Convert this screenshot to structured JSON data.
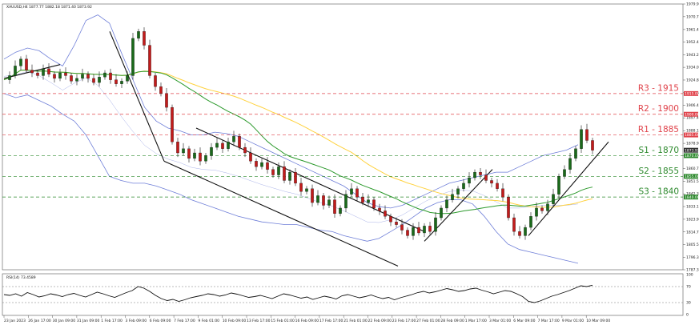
{
  "header": {
    "symbol_info": "XAUUSD,H4  1877.77 1882.18 1871.40 1873.92"
  },
  "indicator": {
    "label": "RSI(14) 73.4589"
  },
  "colors": {
    "resistance": "#e0434b",
    "support": "#2e8a2e",
    "ma_green": "#2d9a2d",
    "ma_yellow": "#ffd23f",
    "bands": "#6f7fd8",
    "candle": "#111111",
    "bull": "#1a6a1a",
    "bear": "#c21b1b"
  },
  "levels": [
    {
      "name": "R3",
      "value": 1915,
      "label": "R3 - 1915",
      "type": "resistance"
    },
    {
      "name": "R2",
      "value": 1900,
      "label": "R2 - 1900",
      "type": "resistance"
    },
    {
      "name": "R1",
      "value": 1885,
      "label": "R1 - 1885",
      "type": "resistance"
    },
    {
      "name": "S1",
      "value": 1870,
      "label": "S1 - 1870",
      "type": "support"
    },
    {
      "name": "S2",
      "value": 1855,
      "label": "S2 - 1855",
      "type": "support"
    },
    {
      "name": "S3",
      "value": 1840,
      "label": "S3 - 1840",
      "type": "support"
    }
  ],
  "price_axis": {
    "ticks": [
      "1979.90",
      "1970.70",
      "1961.40",
      "1952.40",
      "1943.20",
      "1934.00",
      "1924.80",
      "1915.60",
      "1906.40",
      "1897.40",
      "1888.10",
      "1878.90",
      "1869.90",
      "1860.70",
      "1851.50",
      "1842.30",
      "1833.10",
      "1823.90",
      "1814.70",
      "1805.50",
      "1796.30",
      "1787.30"
    ],
    "badges": [
      {
        "text": "1915.00",
        "type": "resistance"
      },
      {
        "text": "1900.00",
        "type": "resistance"
      },
      {
        "text": "1885.00",
        "type": "resistance"
      },
      {
        "text": "1873.92",
        "type": "price"
      },
      {
        "text": "1870.00",
        "type": "support"
      },
      {
        "text": "1855.00",
        "type": "support"
      },
      {
        "text": "1840.00",
        "type": "support"
      }
    ]
  },
  "rsi_axis": {
    "ticks": [
      "100",
      "70",
      "30",
      "0"
    ]
  },
  "time_axis": {
    "ticks": [
      "23 Jan 2023",
      "26 Jan 17:00",
      "30 Jan 09:00",
      "31 Jan 09:00",
      "1 Feb 17:00",
      "3 Feb 09:00",
      "6 Feb 09:00",
      "7 Feb 17:00",
      "9 Feb 01:00",
      "10 Feb 09:00",
      "13 Feb 17:00",
      "15 Feb 01:00",
      "16 Feb 09:00",
      "17 Feb 17:00",
      "21 Feb 01:00",
      "22 Feb 09:00",
      "23 Feb 17:00",
      "27 Feb 01:00",
      "28 Feb 09:00",
      "1 Mar 17:00",
      "3 Mar 01:00",
      "6 Mar 09:00",
      "7 Mar 17:00",
      "9 Mar 01:00",
      "10 Mar 09:00"
    ]
  },
  "chart_data": {
    "type": "candlestick",
    "symbol": "XAUUSD",
    "timeframe": "H4",
    "last": {
      "open": 1877.77,
      "high": 1882.18,
      "low": 1871.4,
      "close": 1873.92
    },
    "ylim": [
      1787.3,
      1979.9
    ],
    "rsi": {
      "period": 14,
      "value": 73.4589,
      "levels": [
        70,
        30
      ],
      "ylim": [
        0,
        100
      ]
    },
    "price_path": [
      1925,
      1928,
      1935,
      1940,
      1932,
      1930,
      1928,
      1933,
      1929,
      1926,
      1930,
      1928,
      1924,
      1926,
      1929,
      1926,
      1923,
      1927,
      1930,
      1925,
      1922,
      1924,
      1928,
      1955,
      1960,
      1950,
      1928,
      1920,
      1915,
      1905,
      1880,
      1872,
      1875,
      1868,
      1872,
      1866,
      1870,
      1876,
      1879,
      1875,
      1880,
      1884,
      1876,
      1872,
      1866,
      1862,
      1865,
      1860,
      1856,
      1862,
      1852,
      1858,
      1850,
      1844,
      1846,
      1836,
      1841,
      1834,
      1838,
      1828,
      1832,
      1842,
      1846,
      1840,
      1836,
      1838,
      1832,
      1830,
      1826,
      1822,
      1820,
      1816,
      1812,
      1818,
      1814,
      1819,
      1815,
      1825,
      1832,
      1838,
      1842,
      1846,
      1850,
      1854,
      1858,
      1856,
      1852,
      1850,
      1846,
      1840,
      1825,
      1815,
      1812,
      1818,
      1826,
      1832,
      1830,
      1835,
      1842,
      1855,
      1860,
      1868,
      1875,
      1889,
      1881,
      1873.92
    ],
    "rsi_path": [
      50,
      48,
      52,
      46,
      55,
      50,
      44,
      47,
      52,
      49,
      45,
      50,
      53,
      48,
      44,
      50,
      56,
      52,
      47,
      43,
      49,
      55,
      60,
      70,
      66,
      58,
      48,
      40,
      35,
      38,
      33,
      37,
      42,
      45,
      48,
      52,
      50,
      46,
      49,
      54,
      51,
      47,
      43,
      45,
      48,
      44,
      40,
      46,
      52,
      49,
      45,
      41,
      44,
      38,
      42,
      46,
      43,
      39,
      47,
      50,
      46,
      42,
      45,
      49,
      44,
      40,
      43,
      37,
      42,
      46,
      50,
      55,
      58,
      54,
      57,
      61,
      65,
      62,
      58,
      60,
      64,
      66,
      61,
      57,
      52,
      56,
      60,
      58,
      52,
      45,
      33,
      30,
      34,
      40,
      46,
      50,
      55,
      60,
      66,
      72,
      70,
      73.46
    ],
    "upper_band_path": [
      1940,
      1945,
      1948,
      1946,
      1940,
      1935,
      1950,
      1968,
      1972,
      1966,
      1945,
      1925,
      1905,
      1895,
      1890,
      1888,
      1885,
      1885,
      1887,
      1886,
      1884,
      1880,
      1876,
      1872,
      1868,
      1864,
      1860,
      1856,
      1852,
      1848,
      1842,
      1836,
      1833,
      1832,
      1834,
      1838,
      1842,
      1846,
      1850,
      1852,
      1854,
      1856,
      1858,
      1858,
      1862,
      1866,
      1870,
      1872,
      1874,
      1878
    ],
    "lower_band_path": [
      1915,
      1912,
      1914,
      1910,
      1906,
      1900,
      1895,
      1885,
      1870,
      1855,
      1852,
      1850,
      1850,
      1848,
      1845,
      1842,
      1838,
      1835,
      1832,
      1829,
      1826,
      1824,
      1822,
      1821,
      1820,
      1820,
      1818,
      1816,
      1815,
      1812,
      1810,
      1808,
      1810,
      1815,
      1820,
      1826,
      1832,
      1836,
      1838,
      1838,
      1835,
      1826,
      1815,
      1806,
      1802,
      1800,
      1798,
      1796,
      1794,
      1792
    ]
  }
}
